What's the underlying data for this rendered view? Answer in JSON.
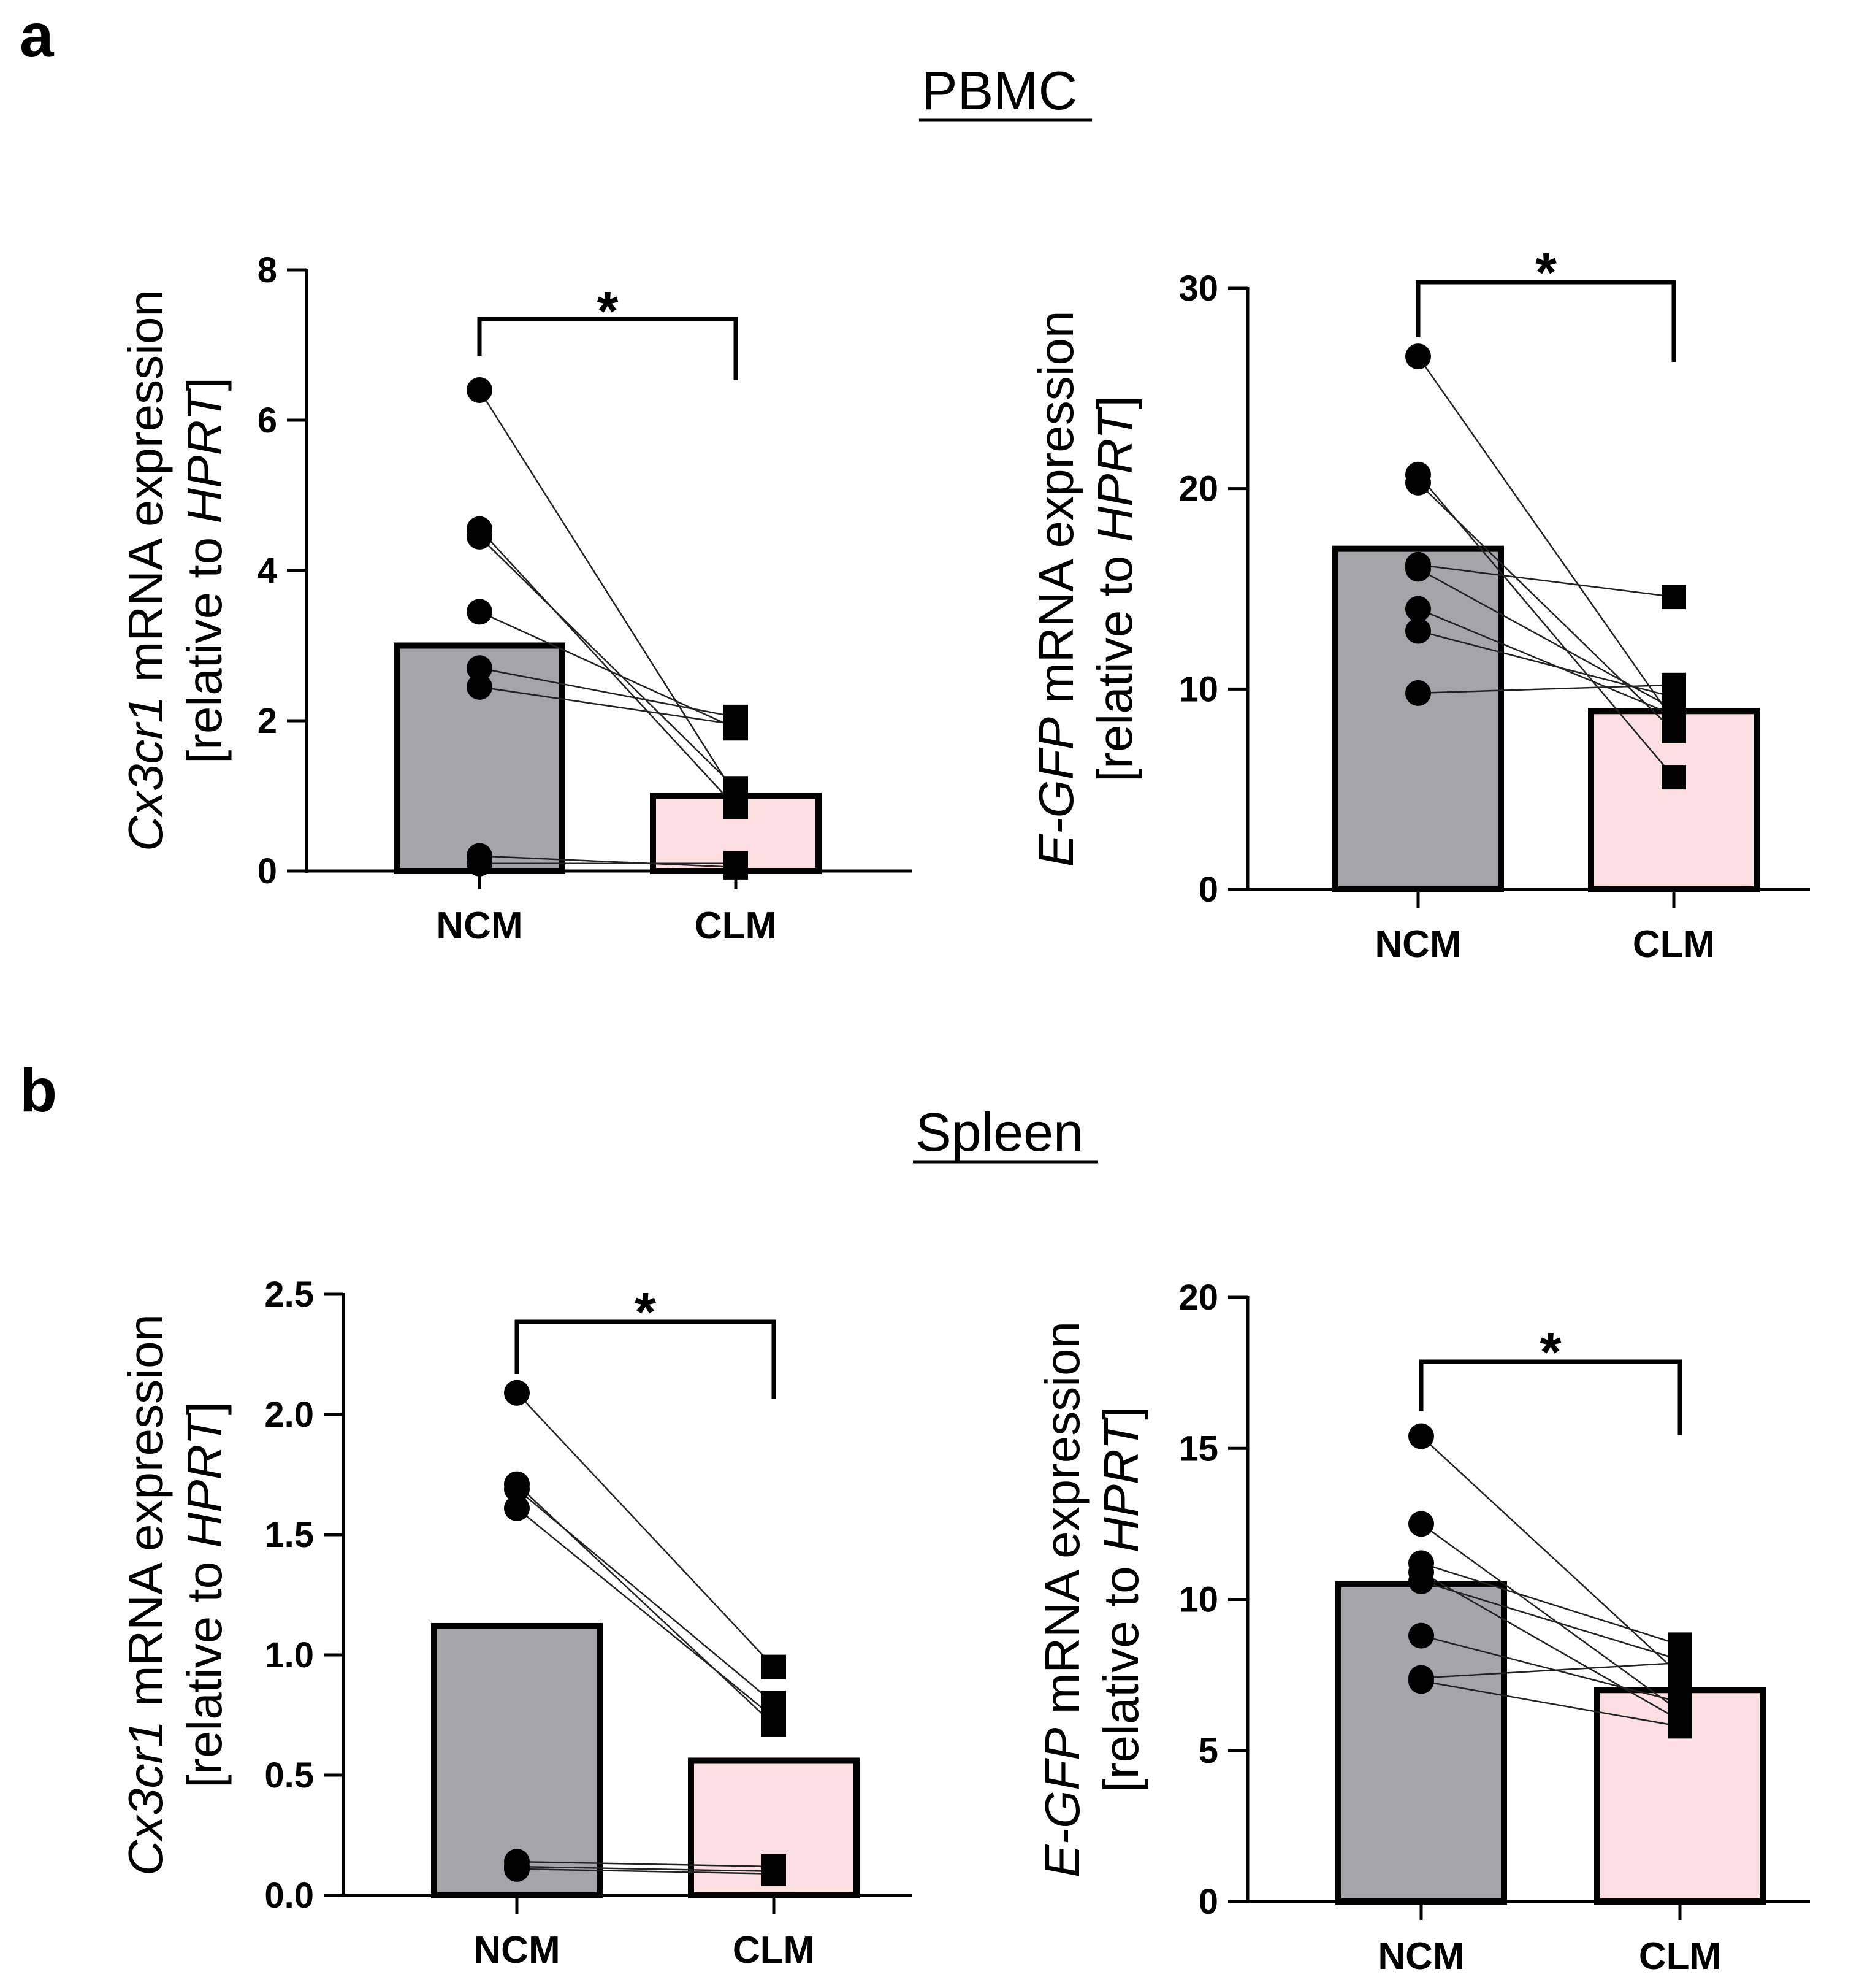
{
  "figure": {
    "panels": [
      {
        "letter": "a",
        "title": "PBMC"
      },
      {
        "letter": "b",
        "title": "Spleen"
      }
    ],
    "colors": {
      "ncm_fill": "#a5a4a9",
      "clm_fill": "#fbdfe1",
      "ink": "#000000"
    }
  },
  "chart_data": [
    {
      "type": "bar",
      "section": "PBMC",
      "gene": "Cx3cr1",
      "ylabel_line1_italic": "Cx3cr1",
      "ylabel_line1_rest": " mRNA expression",
      "ylabel_line2_pre": "[relative to ",
      "ylabel_line2_italic": "HPRT",
      "ylabel_line2_post": "]",
      "categories": [
        "NCM",
        "CLM"
      ],
      "means": [
        3.0,
        1.0
      ],
      "ylim": [
        0,
        8
      ],
      "yticks": [
        0,
        2,
        4,
        6,
        8
      ],
      "ytick_labels": [
        "0",
        "2",
        "4",
        "6",
        "8"
      ],
      "paired_points": [
        [
          6.4,
          1.0
        ],
        [
          4.55,
          0.85
        ],
        [
          4.45,
          1.1
        ],
        [
          3.45,
          1.9
        ],
        [
          2.7,
          2.05
        ],
        [
          2.45,
          1.95
        ],
        [
          0.2,
          0.05
        ],
        [
          0.1,
          0.1
        ]
      ],
      "significance": "*"
    },
    {
      "type": "bar",
      "section": "PBMC",
      "gene": "E-GFP",
      "ylabel_line1_italic": "E-GFP",
      "ylabel_line1_rest": " mRNA expression",
      "ylabel_line2_pre": "[relative to ",
      "ylabel_line2_italic": "HPRT",
      "ylabel_line2_post": "]",
      "categories": [
        "NCM",
        "CLM"
      ],
      "means": [
        17.0,
        8.9
      ],
      "ylim": [
        0,
        30
      ],
      "yticks": [
        0,
        10,
        20,
        30
      ],
      "ytick_labels": [
        "0",
        "10",
        "20",
        "30"
      ],
      "paired_points": [
        [
          26.6,
          8.4
        ],
        [
          20.7,
          5.6
        ],
        [
          20.3,
          7.9
        ],
        [
          16.2,
          14.6
        ],
        [
          16.0,
          9.0
        ],
        [
          14.0,
          8.7
        ],
        [
          12.9,
          9.6
        ],
        [
          9.8,
          10.2
        ]
      ],
      "significance": "*"
    },
    {
      "type": "bar",
      "section": "Spleen",
      "gene": "Cx3cr1",
      "ylabel_line1_italic": "Cx3cr1",
      "ylabel_line1_rest": " mRNA expression",
      "ylabel_line2_pre": "[relative to ",
      "ylabel_line2_italic": "HPRT",
      "ylabel_line2_post": "]",
      "categories": [
        "NCM",
        "CLM"
      ],
      "means": [
        1.12,
        0.56
      ],
      "ylim": [
        0,
        2.5
      ],
      "yticks": [
        0.0,
        0.5,
        1.0,
        1.5,
        2.0,
        2.5
      ],
      "ytick_labels": [
        "0.0",
        "0.5",
        "1.0",
        "1.5",
        "2.0",
        "2.5"
      ],
      "paired_points": [
        [
          2.09,
          0.95
        ],
        [
          1.71,
          0.71
        ],
        [
          1.69,
          0.8
        ],
        [
          1.61,
          0.74
        ],
        [
          0.14,
          0.12
        ],
        [
          0.12,
          0.1
        ],
        [
          0.11,
          0.09
        ]
      ],
      "significance": "*"
    },
    {
      "type": "bar",
      "section": "Spleen",
      "gene": "E-GFP",
      "ylabel_line1_italic": "E-GFP",
      "ylabel_line1_rest": " mRNA expression",
      "ylabel_line2_pre": "[relative to ",
      "ylabel_line2_italic": "HPRT",
      "ylabel_line2_post": "]",
      "categories": [
        "NCM",
        "CLM"
      ],
      "means": [
        10.5,
        7.0
      ],
      "ylim": [
        0,
        20
      ],
      "yticks": [
        0,
        5,
        10,
        15,
        20
      ],
      "ytick_labels": [
        "0",
        "5",
        "10",
        "15",
        "20"
      ],
      "paired_points": [
        [
          15.4,
          7.5
        ],
        [
          12.5,
          6.3
        ],
        [
          11.2,
          8.5
        ],
        [
          10.9,
          6.0
        ],
        [
          10.6,
          8.0
        ],
        [
          8.8,
          6.6
        ],
        [
          7.4,
          7.9
        ],
        [
          7.3,
          5.8
        ]
      ],
      "significance": "*"
    }
  ]
}
